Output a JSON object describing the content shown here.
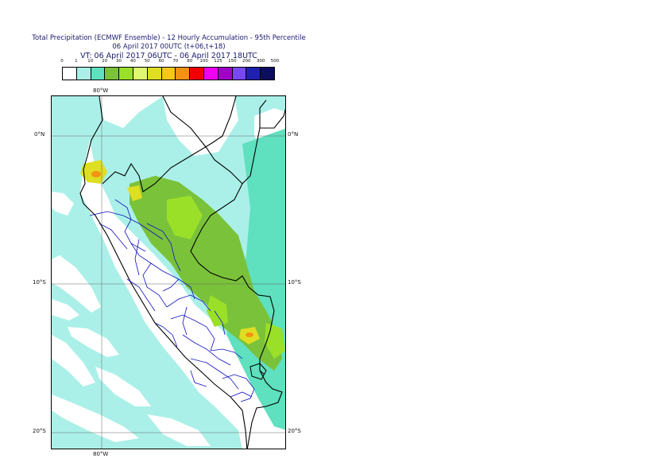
{
  "title": {
    "line1": "Total Precipitation (ECMWF Ensemble) - 12 Hourly Accumulation - 95th Percentile",
    "line2": "06 April 2017 00UTC (t+06,t+18)",
    "line3": "VT: 06 April 2017 06UTC - 06 April 2017 18UTC"
  },
  "legend": {
    "thresholds": [
      "0",
      "1",
      "10",
      "20",
      "30",
      "40",
      "50",
      "60",
      "70",
      "80",
      "100",
      "125",
      "150",
      "200",
      "300",
      "500"
    ],
    "colors": [
      "#ffffff",
      "#aaf0e8",
      "#5fe0be",
      "#7ac23a",
      "#9ae028",
      "#e0f870",
      "#dede22",
      "#f6c814",
      "#f49214",
      "#f20000",
      "#f000f0",
      "#a000c8",
      "#7848f0",
      "#2020b0",
      "#0c0c60"
    ]
  },
  "map": {
    "lat_labels": [
      "0°N",
      "10°S",
      "20°S"
    ],
    "lon_labels": [
      "80°W",
      "80°W"
    ],
    "colors": {
      "light_cyan": "#aaf0e8",
      "mid_green": "#5fe0be",
      "olive_green": "#7ac23a",
      "lime": "#9ae028",
      "yellow": "#dede22",
      "orange": "#f49214",
      "country_border": "#000000",
      "province_border": "#1010c0"
    }
  }
}
